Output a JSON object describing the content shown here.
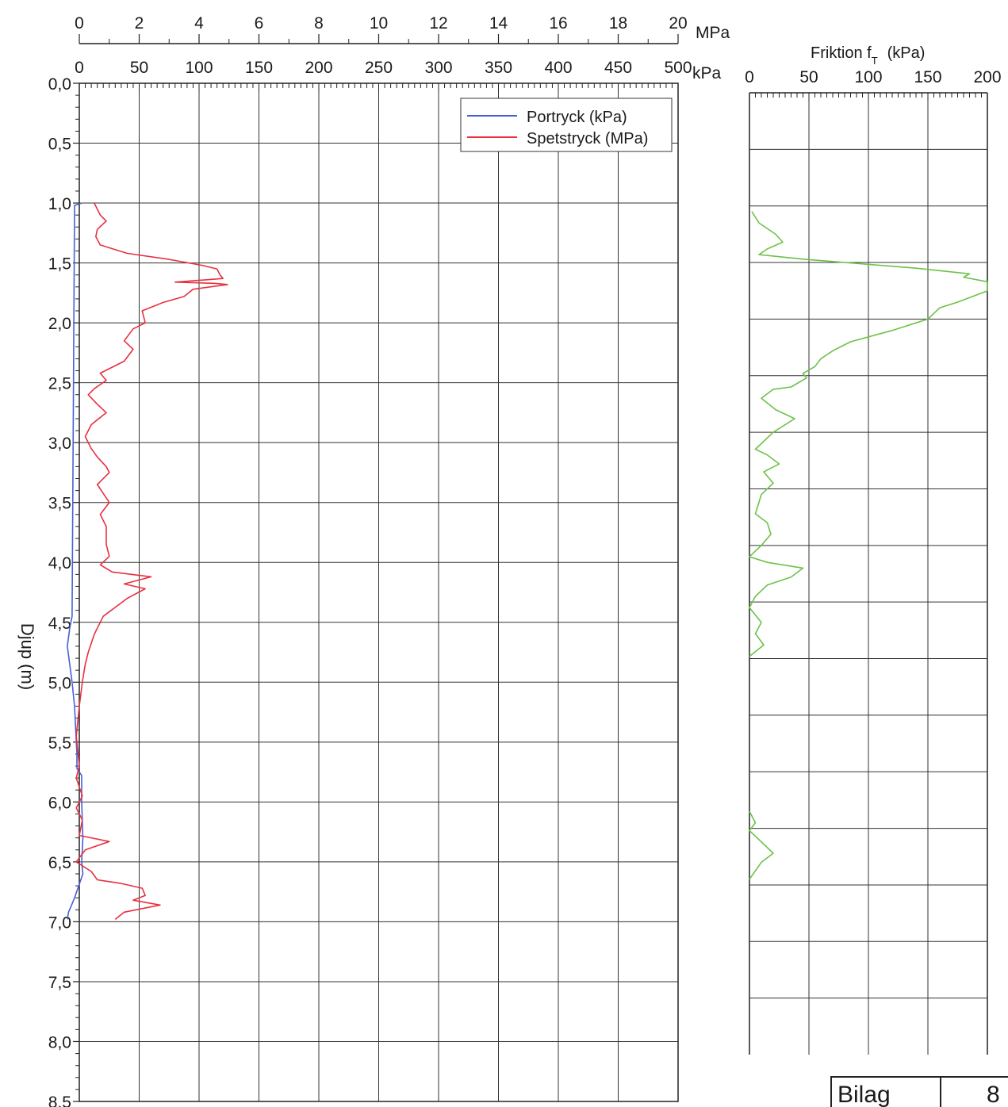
{
  "chart_data": [
    {
      "type": "line",
      "ylabel": "Djup (m)",
      "ylim": [
        0,
        8.5
      ],
      "y_inverted": true,
      "y_ticks": [
        "0,0",
        "0,5",
        "1,0",
        "1,5",
        "2,0",
        "2,5",
        "3,0",
        "3,5",
        "4,0",
        "4,5",
        "5,0",
        "5,5",
        "6,0",
        "6,5",
        "7,0",
        "7,5",
        "8,0",
        "8,5"
      ],
      "x_axes": [
        {
          "unit": "MPa",
          "range": [
            0,
            20
          ],
          "ticks": [
            "0",
            "2",
            "4",
            "6",
            "8",
            "10",
            "12",
            "14",
            "16",
            "18",
            "20"
          ]
        },
        {
          "unit": "kPa",
          "range": [
            0,
            500
          ],
          "ticks": [
            "0",
            "50",
            "100",
            "150",
            "200",
            "250",
            "300",
            "350",
            "400",
            "450",
            "500"
          ]
        }
      ],
      "grid": true,
      "legend_position": "top-right",
      "series": [
        {
          "name": "Portryck (kPa)",
          "color": "#4a5fd6",
          "x_unit": "kPa",
          "points": [
            [
              2,
              1.0
            ],
            [
              -4,
              1.02
            ],
            [
              -6,
              4.45
            ],
            [
              -8,
              4.55
            ],
            [
              -10,
              4.7
            ],
            [
              -8,
              4.85
            ],
            [
              -6,
              5.0
            ],
            [
              -4,
              5.2
            ],
            [
              -3,
              5.4
            ],
            [
              -2,
              5.6
            ],
            [
              -2,
              5.72
            ],
            [
              2,
              5.78
            ],
            [
              2,
              6.0
            ],
            [
              3,
              6.3
            ],
            [
              2,
              6.5
            ],
            [
              3,
              6.6
            ],
            [
              -4,
              6.8
            ],
            [
              -6,
              6.85
            ],
            [
              -9,
              6.92
            ],
            [
              -10,
              6.98
            ]
          ]
        },
        {
          "name": "Spetstryck (MPa)",
          "color": "#e8303f",
          "x_unit": "MPa",
          "points": [
            [
              0.5,
              1.0
            ],
            [
              0.7,
              1.1
            ],
            [
              0.9,
              1.15
            ],
            [
              0.6,
              1.22
            ],
            [
              0.55,
              1.28
            ],
            [
              0.7,
              1.35
            ],
            [
              1.6,
              1.42
            ],
            [
              3.0,
              1.47
            ],
            [
              4.1,
              1.52
            ],
            [
              4.6,
              1.55
            ],
            [
              4.7,
              1.6
            ],
            [
              4.8,
              1.63
            ],
            [
              3.2,
              1.66
            ],
            [
              4.5,
              1.67
            ],
            [
              4.95,
              1.68
            ],
            [
              3.8,
              1.72
            ],
            [
              3.5,
              1.78
            ],
            [
              2.8,
              1.83
            ],
            [
              2.1,
              1.9
            ],
            [
              2.2,
              2.0
            ],
            [
              1.8,
              2.05
            ],
            [
              1.5,
              2.15
            ],
            [
              1.8,
              2.22
            ],
            [
              1.5,
              2.32
            ],
            [
              0.7,
              2.42
            ],
            [
              0.9,
              2.48
            ],
            [
              0.5,
              2.55
            ],
            [
              0.3,
              2.6
            ],
            [
              0.6,
              2.68
            ],
            [
              0.9,
              2.75
            ],
            [
              0.4,
              2.85
            ],
            [
              0.2,
              2.95
            ],
            [
              0.4,
              3.05
            ],
            [
              0.6,
              3.12
            ],
            [
              0.9,
              3.2
            ],
            [
              1.0,
              3.25
            ],
            [
              0.6,
              3.35
            ],
            [
              1.0,
              3.5
            ],
            [
              0.7,
              3.6
            ],
            [
              0.9,
              3.7
            ],
            [
              0.9,
              3.85
            ],
            [
              1.0,
              3.95
            ],
            [
              0.7,
              4.02
            ],
            [
              1.1,
              4.08
            ],
            [
              2.4,
              4.12
            ],
            [
              1.5,
              4.18
            ],
            [
              2.2,
              4.22
            ],
            [
              1.6,
              4.3
            ],
            [
              0.8,
              4.45
            ],
            [
              0.5,
              4.6
            ],
            [
              0.3,
              4.75
            ],
            [
              0.2,
              4.85
            ],
            [
              0.1,
              5.0
            ],
            [
              0.0,
              5.2
            ],
            [
              -0.1,
              5.45
            ],
            [
              0.0,
              5.7
            ],
            [
              -0.1,
              5.8
            ],
            [
              0.1,
              5.95
            ],
            [
              -0.1,
              6.05
            ],
            [
              0.1,
              6.15
            ],
            [
              0.0,
              6.28
            ],
            [
              1.0,
              6.33
            ],
            [
              0.2,
              6.4
            ],
            [
              -0.1,
              6.5
            ],
            [
              0.4,
              6.58
            ],
            [
              0.6,
              6.65
            ],
            [
              1.4,
              6.68
            ],
            [
              2.1,
              6.72
            ],
            [
              2.2,
              6.78
            ],
            [
              1.8,
              6.82
            ],
            [
              2.7,
              6.86
            ],
            [
              1.5,
              6.92
            ],
            [
              1.2,
              6.98
            ]
          ]
        }
      ],
      "legend": [
        "Portryck (kPa)",
        "Spetstryck (MPa)"
      ]
    },
    {
      "type": "line",
      "xlabel": "Friktion f",
      "xlabel_subscript": "T",
      "xlabel_unit": "(kPa)",
      "xlim": [
        0,
        200
      ],
      "x_ticks": [
        "0",
        "50",
        "100",
        "150",
        "200"
      ],
      "ylim": [
        0,
        8.5
      ],
      "y_inverted": true,
      "grid": true,
      "series": [
        {
          "color": "#6cc24a",
          "segments": [
            [
              [
                2,
                1.05
              ],
              [
                8,
                1.15
              ],
              [
                22,
                1.25
              ],
              [
                28,
                1.32
              ],
              [
                15,
                1.38
              ],
              [
                8,
                1.43
              ],
              [
                45,
                1.47
              ],
              [
                140,
                1.55
              ],
              [
                185,
                1.6
              ],
              [
                180,
                1.63
              ],
              [
                200,
                1.67
              ],
              [
                200,
                1.75
              ],
              [
                175,
                1.85
              ],
              [
                160,
                1.9
              ],
              [
                150,
                2.0
              ],
              [
                120,
                2.1
              ],
              [
                85,
                2.2
              ],
              [
                70,
                2.28
              ],
              [
                60,
                2.35
              ],
              [
                55,
                2.42
              ],
              [
                45,
                2.48
              ],
              [
                48,
                2.52
              ],
              [
                35,
                2.6
              ],
              [
                20,
                2.62
              ],
              [
                10,
                2.7
              ],
              [
                22,
                2.8
              ],
              [
                38,
                2.88
              ],
              [
                20,
                3.0
              ],
              [
                5,
                3.15
              ],
              [
                15,
                3.2
              ],
              [
                25,
                3.28
              ],
              [
                12,
                3.35
              ],
              [
                20,
                3.45
              ],
              [
                10,
                3.55
              ],
              [
                5,
                3.72
              ],
              [
                15,
                3.8
              ],
              [
                18,
                3.9
              ],
              [
                10,
                4.0
              ],
              [
                0,
                4.1
              ],
              [
                15,
                4.15
              ],
              [
                45,
                4.2
              ],
              [
                35,
                4.28
              ],
              [
                15,
                4.35
              ],
              [
                5,
                4.45
              ],
              [
                0,
                4.55
              ],
              [
                10,
                4.68
              ],
              [
                5,
                4.78
              ],
              [
                12,
                4.88
              ],
              [
                0,
                4.98
              ]
            ],
            [
              [
                0,
                6.35
              ],
              [
                5,
                6.45
              ],
              [
                0,
                6.52
              ],
              [
                20,
                6.72
              ],
              [
                10,
                6.8
              ],
              [
                0,
                6.95
              ]
            ]
          ]
        }
      ]
    }
  ],
  "stamp": {
    "label": "Bilag",
    "number": "8"
  }
}
